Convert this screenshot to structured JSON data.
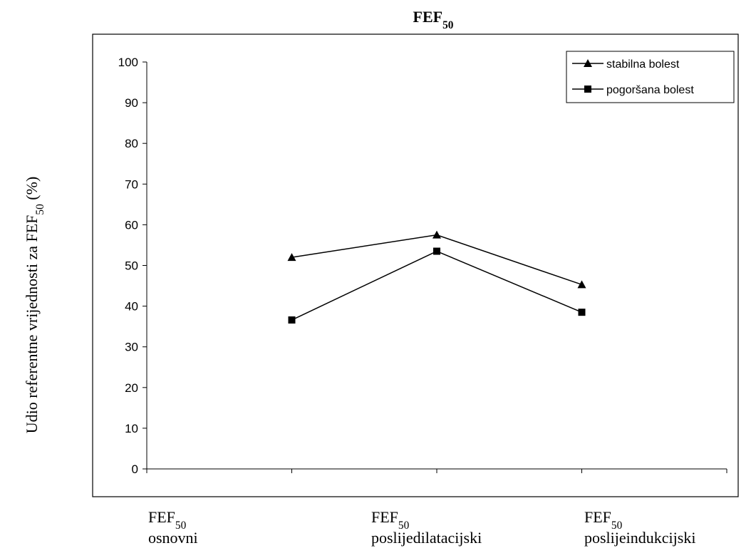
{
  "chart_data": {
    "type": "line",
    "title": [
      "FEF",
      "50"
    ],
    "y_label": [
      "Udio referentne vrijednosti za FEF",
      "50",
      " (%)"
    ],
    "category_prefix": [
      "FEF",
      "50"
    ],
    "categories": [
      null,
      "osnovni",
      "poslijedilatacijski",
      "poslijeindukcijski",
      null
    ],
    "series": [
      {
        "name": "stabilna bolest",
        "color": "#000000",
        "marker": "triangle",
        "values": [
          null,
          52,
          57.5,
          45.3,
          null
        ]
      },
      {
        "name": "pogoršana bolest",
        "color": "#000000",
        "marker": "square",
        "values": [
          null,
          36.6,
          53.5,
          38.5,
          null
        ]
      }
    ],
    "ylim": [
      0,
      100
    ],
    "yticks": [
      0,
      10,
      20,
      30,
      40,
      50,
      60,
      70,
      80,
      90,
      100
    ],
    "grid": false,
    "legend": "top-right"
  }
}
